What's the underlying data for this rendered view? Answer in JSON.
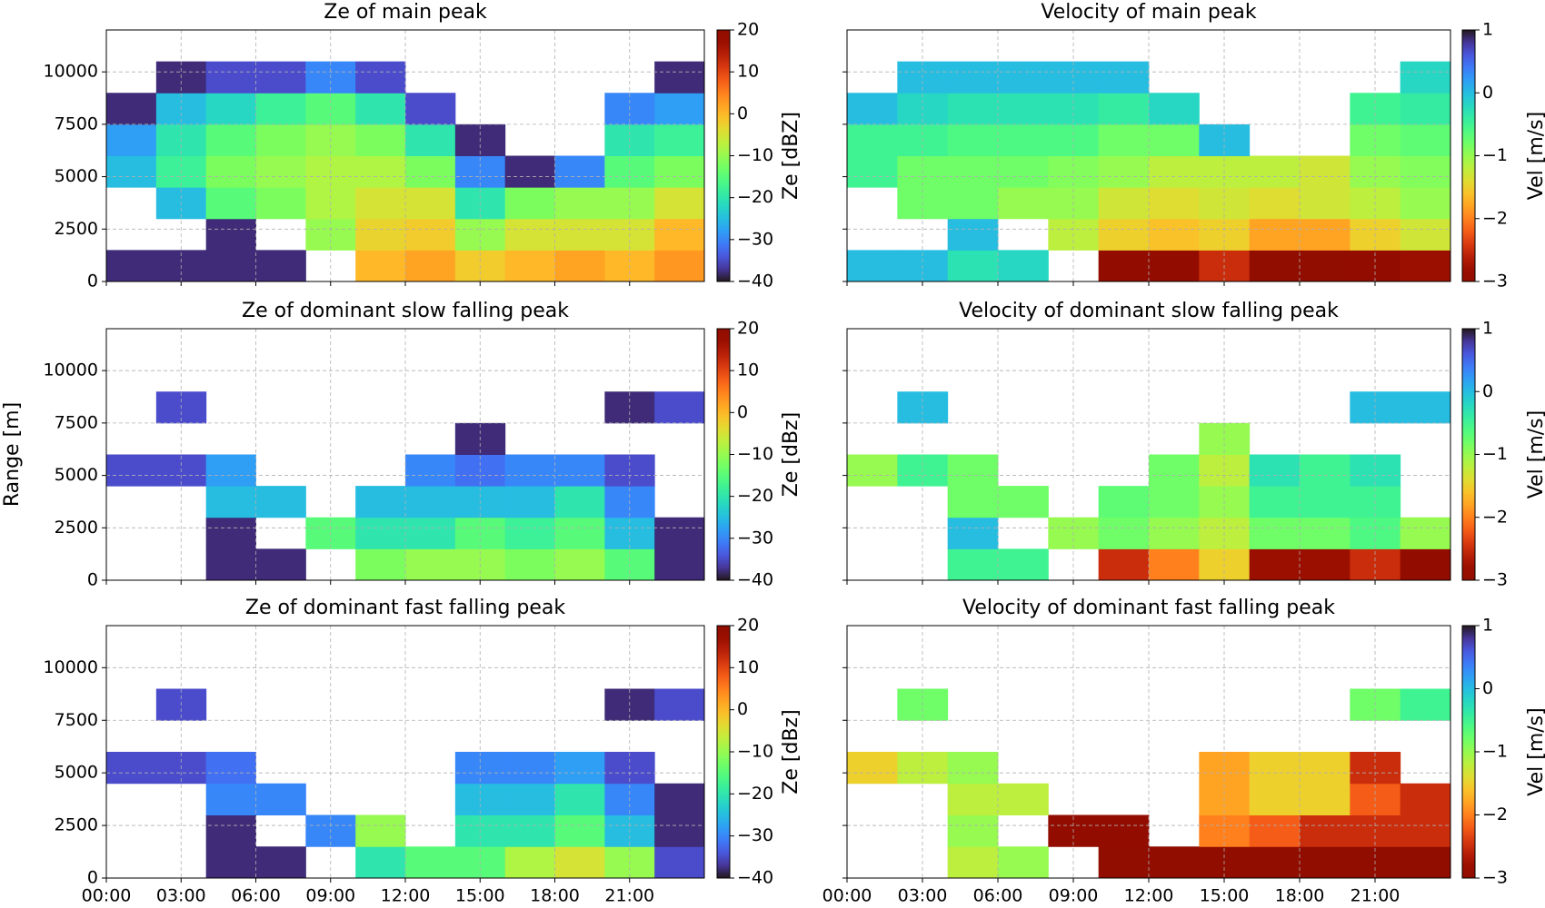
{
  "chart_data": [
    {
      "type": "heatmap",
      "title": "Ze of main peak",
      "colorbar_label": "Ze [dBZ]",
      "colormap": "turbo",
      "clim": [
        -40,
        20
      ],
      "cticks": [
        {
          "value": -40,
          "label": "−40"
        },
        {
          "value": -30,
          "label": "−30"
        },
        {
          "value": -20,
          "label": "−20"
        },
        {
          "value": -10,
          "label": "−10"
        },
        0,
        10,
        20
      ],
      "xlim": [
        0,
        24
      ],
      "xticks": [
        0,
        3,
        6,
        9,
        12,
        15,
        18,
        21
      ],
      "xtick_labels": false,
      "ylim": [
        0,
        12000
      ],
      "yticks": [
        0,
        2500,
        5000,
        7500,
        10000
      ],
      "grid": true,
      "x_edges": [
        0,
        2,
        4,
        6,
        8,
        10,
        12,
        14,
        16,
        18,
        20,
        22,
        24
      ],
      "y_edges": [
        0,
        1500,
        3000,
        4500,
        6000,
        7500,
        9000,
        10500
      ],
      "z": [
        [
          -38,
          -38,
          -38,
          -38,
          null,
          0,
          2,
          -2,
          0,
          2,
          0,
          3
        ],
        [
          null,
          null,
          -38,
          null,
          -10,
          -3,
          -2,
          -10,
          -5,
          -5,
          -5,
          0
        ],
        [
          null,
          -25,
          -15,
          -12,
          -8,
          -5,
          -5,
          -20,
          -12,
          -10,
          -10,
          -5
        ],
        [
          -25,
          -18,
          -12,
          -10,
          -8,
          -8,
          -12,
          -30,
          -38,
          -30,
          -15,
          -12
        ],
        [
          -28,
          -20,
          -15,
          -12,
          -10,
          -12,
          -20,
          -38,
          null,
          null,
          -20,
          -18
        ],
        [
          -38,
          -25,
          -22,
          -18,
          -15,
          -20,
          -35,
          null,
          null,
          null,
          -30,
          -28
        ],
        [
          null,
          -38,
          -35,
          -35,
          -30,
          -35,
          null,
          null,
          null,
          null,
          null,
          -38
        ]
      ]
    },
    {
      "type": "heatmap",
      "title": "Velocity of main peak",
      "colorbar_label": "Vel [m/s]",
      "colormap": "turbo_r",
      "clim": [
        -3,
        1
      ],
      "cticks": [
        {
          "value": -3,
          "label": "−3"
        },
        {
          "value": -2,
          "label": "−2"
        },
        {
          "value": -1,
          "label": "−1"
        },
        0,
        1
      ],
      "xlim": [
        0,
        24
      ],
      "xticks": [
        0,
        3,
        6,
        9,
        12,
        15,
        18,
        21
      ],
      "xtick_labels": false,
      "ylim": [
        0,
        12000
      ],
      "yticks": [
        0,
        2500,
        5000,
        7500,
        10000
      ],
      "ytick_labels": false,
      "grid": true,
      "x_edges": [
        0,
        2,
        4,
        6,
        8,
        10,
        12,
        14,
        16,
        18,
        20,
        22,
        24
      ],
      "y_edges": [
        0,
        1500,
        3000,
        4500,
        6000,
        7500,
        9000,
        10500
      ],
      "z": [
        [
          0,
          0,
          -0.3,
          -0.2,
          null,
          -2.9,
          -2.9,
          -2.5,
          -3,
          -3,
          -2.9,
          -2.8
        ],
        [
          null,
          null,
          0,
          null,
          -1.2,
          -1.5,
          -1.6,
          -1.5,
          -1.8,
          -1.8,
          -1.5,
          -1.3
        ],
        [
          null,
          -0.8,
          -0.8,
          -1,
          -1,
          -1.3,
          -1.4,
          -1.3,
          -1.4,
          -1.3,
          -1.2,
          -1
        ],
        [
          -0.5,
          -0.8,
          -0.8,
          -0.8,
          -0.9,
          -1,
          -1.2,
          -1.2,
          -1.2,
          -1.3,
          -1,
          -0.9
        ],
        [
          -0.5,
          -0.5,
          -0.6,
          -0.6,
          -0.6,
          -0.8,
          -0.8,
          0,
          null,
          null,
          -0.8,
          -0.7
        ],
        [
          0,
          -0.2,
          -0.3,
          -0.3,
          -0.3,
          -0.4,
          -0.2,
          null,
          null,
          null,
          -0.5,
          -0.4
        ],
        [
          null,
          0,
          0,
          0,
          0,
          0,
          null,
          null,
          null,
          null,
          null,
          -0.2
        ]
      ]
    },
    {
      "type": "heatmap",
      "title": "Ze of dominant slow falling peak",
      "colorbar_label": "Ze [dBz]",
      "colormap": "turbo",
      "clim": [
        -40,
        20
      ],
      "cticks": [
        {
          "value": -40,
          "label": "−40"
        },
        {
          "value": -30,
          "label": "−30"
        },
        {
          "value": -20,
          "label": "−20"
        },
        {
          "value": -10,
          "label": "−10"
        },
        0,
        10,
        20
      ],
      "ylabel": "Range [m]",
      "xlim": [
        0,
        24
      ],
      "xticks": [
        0,
        3,
        6,
        9,
        12,
        15,
        18,
        21
      ],
      "xtick_labels": false,
      "ylim": [
        0,
        12000
      ],
      "yticks": [
        0,
        2500,
        5000,
        7500,
        10000
      ],
      "grid": true,
      "x_edges": [
        0,
        2,
        4,
        6,
        8,
        10,
        12,
        14,
        16,
        18,
        20,
        22,
        24
      ],
      "y_edges": [
        0,
        1500,
        3000,
        4500,
        6000,
        7500,
        9000,
        10500
      ],
      "z": [
        [
          null,
          null,
          -38,
          -38,
          null,
          -12,
          -10,
          -10,
          -12,
          -10,
          -15,
          -38
        ],
        [
          null,
          null,
          -38,
          null,
          -15,
          -20,
          -20,
          -15,
          -18,
          -15,
          -25,
          -38
        ],
        [
          null,
          null,
          -25,
          -25,
          null,
          -25,
          -25,
          -25,
          -25,
          -20,
          -30,
          null
        ],
        [
          -35,
          -35,
          -28,
          null,
          null,
          null,
          -30,
          -32,
          -30,
          -30,
          -35,
          null
        ],
        [
          null,
          null,
          null,
          null,
          null,
          null,
          null,
          -38,
          null,
          null,
          null,
          null
        ],
        [
          null,
          -35,
          null,
          null,
          null,
          null,
          null,
          null,
          null,
          null,
          -38,
          -35
        ],
        [
          null,
          null,
          null,
          null,
          null,
          null,
          null,
          null,
          null,
          null,
          null,
          null
        ]
      ]
    },
    {
      "type": "heatmap",
      "title": "Velocity of dominant slow falling peak",
      "colorbar_label": "Vel [m/s]",
      "colormap": "turbo_r",
      "clim": [
        -3,
        1
      ],
      "cticks": [
        {
          "value": -3,
          "label": "−3"
        },
        {
          "value": -2,
          "label": "−2"
        },
        {
          "value": -1,
          "label": "−1"
        },
        0,
        1
      ],
      "xlim": [
        0,
        24
      ],
      "xticks": [
        0,
        3,
        6,
        9,
        12,
        15,
        18,
        21
      ],
      "xtick_labels": false,
      "ylim": [
        0,
        12000
      ],
      "yticks": [
        0,
        2500,
        5000,
        7500,
        10000
      ],
      "ytick_labels": false,
      "grid": true,
      "x_edges": [
        0,
        2,
        4,
        6,
        8,
        10,
        12,
        14,
        16,
        18,
        20,
        22,
        24
      ],
      "y_edges": [
        0,
        1500,
        3000,
        4500,
        6000,
        7500,
        9000,
        10500
      ],
      "z": [
        [
          null,
          null,
          -0.5,
          -0.5,
          null,
          -2.5,
          -2,
          -1.5,
          -2.8,
          -2.8,
          -2.5,
          -2.9
        ],
        [
          null,
          null,
          0,
          null,
          -1,
          -0.8,
          -1,
          -1.2,
          -0.8,
          -0.8,
          -0.6,
          -1
        ],
        [
          null,
          null,
          -0.8,
          -0.8,
          null,
          -0.7,
          -0.8,
          -1,
          -0.5,
          -0.5,
          -0.5,
          null
        ],
        [
          -1,
          -0.5,
          -0.8,
          null,
          null,
          null,
          -0.8,
          -1.2,
          -0.3,
          -0.5,
          -0.3,
          null
        ],
        [
          null,
          null,
          null,
          null,
          null,
          null,
          null,
          -1,
          null,
          null,
          null,
          null
        ],
        [
          null,
          0,
          null,
          null,
          null,
          null,
          null,
          null,
          null,
          null,
          0,
          0
        ],
        [
          null,
          null,
          null,
          null,
          null,
          null,
          null,
          null,
          null,
          null,
          null,
          null
        ]
      ]
    },
    {
      "type": "heatmap",
      "title": "Ze of dominant fast falling peak",
      "colorbar_label": "Ze [dBz]",
      "colormap": "turbo",
      "clim": [
        -40,
        20
      ],
      "cticks": [
        {
          "value": -40,
          "label": "−40"
        },
        {
          "value": -30,
          "label": "−30"
        },
        {
          "value": -20,
          "label": "−20"
        },
        {
          "value": -10,
          "label": "−10"
        },
        0,
        10,
        20
      ],
      "xlim": [
        0,
        24
      ],
      "xticks": [
        {
          "value": 0,
          "label": "00:00"
        },
        {
          "value": 3,
          "label": "03:00"
        },
        {
          "value": 6,
          "label": "06:00"
        },
        {
          "value": 9,
          "label": "09:00"
        },
        {
          "value": 12,
          "label": "12:00"
        },
        {
          "value": 15,
          "label": "15:00"
        },
        {
          "value": 18,
          "label": "18:00"
        },
        {
          "value": 21,
          "label": "21:00"
        }
      ],
      "ylim": [
        0,
        12000
      ],
      "yticks": [
        0,
        2500,
        5000,
        7500,
        10000
      ],
      "grid": true,
      "x_edges": [
        0,
        2,
        4,
        6,
        8,
        10,
        12,
        14,
        16,
        18,
        20,
        22,
        24
      ],
      "y_edges": [
        0,
        1500,
        3000,
        4500,
        6000,
        7500,
        9000,
        10500
      ],
      "z": [
        [
          null,
          null,
          -38,
          -38,
          null,
          -20,
          -15,
          -15,
          -8,
          -5,
          -10,
          -35
        ],
        [
          null,
          null,
          -38,
          null,
          -30,
          -10,
          null,
          -20,
          -20,
          -15,
          -25,
          -38
        ],
        [
          null,
          null,
          -30,
          -30,
          null,
          null,
          null,
          -25,
          -25,
          -20,
          -30,
          -38
        ],
        [
          -35,
          -35,
          -32,
          null,
          null,
          null,
          null,
          -30,
          -30,
          -28,
          -35,
          null
        ],
        [
          null,
          null,
          null,
          null,
          null,
          null,
          null,
          null,
          null,
          null,
          null,
          null
        ],
        [
          null,
          -35,
          null,
          null,
          null,
          null,
          null,
          null,
          null,
          null,
          -38,
          -35
        ],
        [
          null,
          null,
          null,
          null,
          null,
          null,
          null,
          null,
          null,
          null,
          null,
          null
        ]
      ]
    },
    {
      "type": "heatmap",
      "title": "Velocity of dominant fast falling peak",
      "colorbar_label": "Vel [m/s]",
      "colormap": "turbo_r",
      "clim": [
        -3,
        1
      ],
      "cticks": [
        {
          "value": -3,
          "label": "−3"
        },
        {
          "value": -2,
          "label": "−2"
        },
        {
          "value": -1,
          "label": "−1"
        },
        0,
        1
      ],
      "xlim": [
        0,
        24
      ],
      "xticks": [
        {
          "value": 0,
          "label": "00:00"
        },
        {
          "value": 3,
          "label": "03:00"
        },
        {
          "value": 6,
          "label": "06:00"
        },
        {
          "value": 9,
          "label": "09:00"
        },
        {
          "value": 12,
          "label": "12:00"
        },
        {
          "value": 15,
          "label": "15:00"
        },
        {
          "value": 18,
          "label": "18:00"
        },
        {
          "value": 21,
          "label": "21:00"
        }
      ],
      "ylim": [
        0,
        12000
      ],
      "yticks": [
        0,
        2500,
        5000,
        7500,
        10000
      ],
      "ytick_labels": false,
      "grid": true,
      "x_edges": [
        0,
        2,
        4,
        6,
        8,
        10,
        12,
        14,
        16,
        18,
        20,
        22,
        24
      ],
      "y_edges": [
        0,
        1500,
        3000,
        4500,
        6000,
        7500,
        9000,
        10500
      ],
      "z": [
        [
          null,
          null,
          -1.2,
          -1,
          null,
          -3,
          -3,
          -3,
          -3,
          -3,
          -3,
          -3
        ],
        [
          null,
          null,
          -1,
          null,
          -2.9,
          -2.9,
          null,
          -2,
          -2.2,
          -2.5,
          -2.5,
          -2.5
        ],
        [
          null,
          null,
          -1.2,
          -1.2,
          null,
          null,
          null,
          -1.8,
          -1.5,
          -1.5,
          -2.2,
          -2.5
        ],
        [
          -1.5,
          -1.2,
          -1,
          null,
          null,
          null,
          null,
          -1.8,
          -1.5,
          -1.5,
          -2.5,
          null
        ],
        [
          null,
          null,
          null,
          null,
          null,
          null,
          null,
          null,
          null,
          null,
          null,
          null
        ],
        [
          null,
          -0.8,
          null,
          null,
          null,
          null,
          null,
          null,
          null,
          null,
          -0.8,
          -0.5
        ],
        [
          null,
          null,
          null,
          null,
          null,
          null,
          null,
          null,
          null,
          null,
          null,
          null
        ]
      ]
    }
  ]
}
